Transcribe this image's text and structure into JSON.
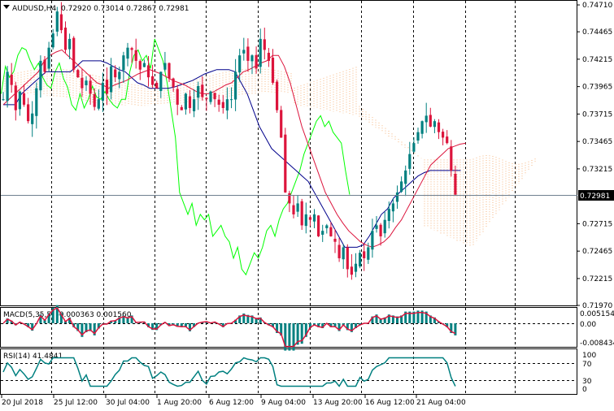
{
  "header": {
    "symbol": "AUDUSD,H4",
    "ohlc": "0.72920 0.73014 0.72867 0.72981"
  },
  "price_axis": {
    "ticks": [
      "0.74710",
      "0.74465",
      "0.74215",
      "0.73965",
      "0.73715",
      "0.73465",
      "0.73215",
      "0.72715",
      "0.72465",
      "0.72215",
      "0.71970"
    ],
    "current": "0.72981"
  },
  "time_axis": {
    "labels": [
      "20 Jul 2018",
      "25 Jul 12:00",
      "30 Jul 04:00",
      "1 Aug 20:00",
      "6 Aug 12:00",
      "9 Aug 04:00",
      "13 Aug 20:00",
      "16 Aug 12:00",
      "21 Aug 04:00"
    ]
  },
  "macd": {
    "label": "MACD(5,35,5) -0.000363 0.001560",
    "ticks": [
      "0.005154",
      "0.00",
      "-0.008434"
    ]
  },
  "rsi": {
    "label": "RSI(14) 41.4841",
    "ticks": [
      "100",
      "70",
      "30",
      "0"
    ]
  },
  "colors": {
    "bull": "#008080",
    "bear": "#dc143c",
    "tenkan": "#dc143c",
    "kijun": "#00008b",
    "chikou": "#00ff00",
    "cloud_a": "#f4a460",
    "cloud_b": "#d8a0b8",
    "macd_hist": "#008080",
    "macd_signal": "#dc143c",
    "rsi_line": "#008080"
  },
  "chart_data": {
    "type": "candlestick",
    "symbol": "AUDUSD",
    "timeframe": "H4",
    "ylim": [
      0.7197,
      0.7474
    ],
    "close_path": [
      0.7385,
      0.741,
      0.7398,
      0.7375,
      0.7392,
      0.738,
      0.7365,
      0.7372,
      0.7395,
      0.742,
      0.741,
      0.7432,
      0.7445,
      0.7465,
      0.7448,
      0.743,
      0.744,
      0.7412,
      0.7405,
      0.7395,
      0.7402,
      0.739,
      0.7378,
      0.7385,
      0.74,
      0.739,
      0.7415,
      0.7405,
      0.741,
      0.7425,
      0.7432,
      0.743,
      0.742,
      0.7412,
      0.7418,
      0.7405,
      0.7398,
      0.7395,
      0.741,
      0.7418,
      0.7404,
      0.7396,
      0.738,
      0.7375,
      0.739,
      0.7377,
      0.7385,
      0.7397,
      0.7387,
      0.7385,
      0.7392,
      0.7385,
      0.738,
      0.7377,
      0.7385,
      0.7385,
      0.741,
      0.7425,
      0.743,
      0.742,
      0.7425,
      0.7413,
      0.744,
      0.743,
      0.742,
      0.74,
      0.7375,
      0.735,
      0.73,
      0.729,
      0.728,
      0.729,
      0.727,
      0.728,
      0.7275,
      0.728,
      0.726,
      0.7265,
      0.727,
      0.726,
      0.7255,
      0.724,
      0.725,
      0.723,
      0.7225,
      0.7235,
      0.7245,
      0.724,
      0.725,
      0.7265,
      0.727,
      0.726,
      0.7275,
      0.7285,
      0.729,
      0.73,
      0.731,
      0.732,
      0.7335,
      0.7345,
      0.7355,
      0.7365,
      0.737,
      0.736,
      0.7365,
      0.7355,
      0.735,
      0.7345,
      0.732,
      0.7298
    ],
    "tenkan_path": [
      0.738,
      0.7385,
      0.739,
      0.7395,
      0.74,
      0.7405,
      0.741,
      0.742,
      0.7425,
      0.7428,
      0.743,
      0.7425,
      0.742,
      0.7415,
      0.741,
      0.7405,
      0.74,
      0.7398,
      0.7395,
      0.7398,
      0.74,
      0.7402,
      0.7405,
      0.7408,
      0.741,
      0.7412,
      0.741,
      0.7408,
      0.7405,
      0.7402,
      0.74,
      0.7398,
      0.7395,
      0.7392,
      0.739,
      0.739,
      0.7392,
      0.7395,
      0.7398,
      0.74,
      0.7405,
      0.741,
      0.7412,
      0.7415,
      0.7418,
      0.742,
      0.7425,
      0.7425,
      0.7415,
      0.74,
      0.738,
      0.736,
      0.7345,
      0.733,
      0.7315,
      0.73,
      0.729,
      0.728,
      0.7272,
      0.7265,
      0.726,
      0.7255,
      0.7252,
      0.725,
      0.7252,
      0.7255,
      0.726,
      0.7268,
      0.7275,
      0.7285,
      0.7295,
      0.7305,
      0.7315,
      0.7325,
      0.733,
      0.7335,
      0.734,
      0.7342,
      0.7344,
      0.7345
    ],
    "kijun_path": [
      0.738,
      0.738,
      0.738,
      0.739,
      0.7395,
      0.74,
      0.7405,
      0.741,
      0.741,
      0.741,
      0.741,
      0.741,
      0.7415,
      0.742,
      0.742,
      0.742,
      0.742,
      0.7418,
      0.7415,
      0.7412,
      0.741,
      0.7405,
      0.74,
      0.7398,
      0.7395,
      0.7395,
      0.7395,
      0.7395,
      0.7396,
      0.7398,
      0.74,
      0.7402,
      0.7405,
      0.7408,
      0.741,
      0.7412,
      0.7412,
      0.7412,
      0.741,
      0.74,
      0.739,
      0.7375,
      0.736,
      0.735,
      0.734,
      0.7335,
      0.733,
      0.7325,
      0.732,
      0.7315,
      0.731,
      0.73,
      0.729,
      0.728,
      0.727,
      0.726,
      0.725,
      0.725,
      0.725,
      0.7252,
      0.726,
      0.727,
      0.728,
      0.7285,
      0.7295,
      0.73,
      0.7305,
      0.731,
      0.7315,
      0.7318,
      0.732,
      0.732,
      0.732,
      0.732,
      0.732,
      0.732
    ]
  }
}
